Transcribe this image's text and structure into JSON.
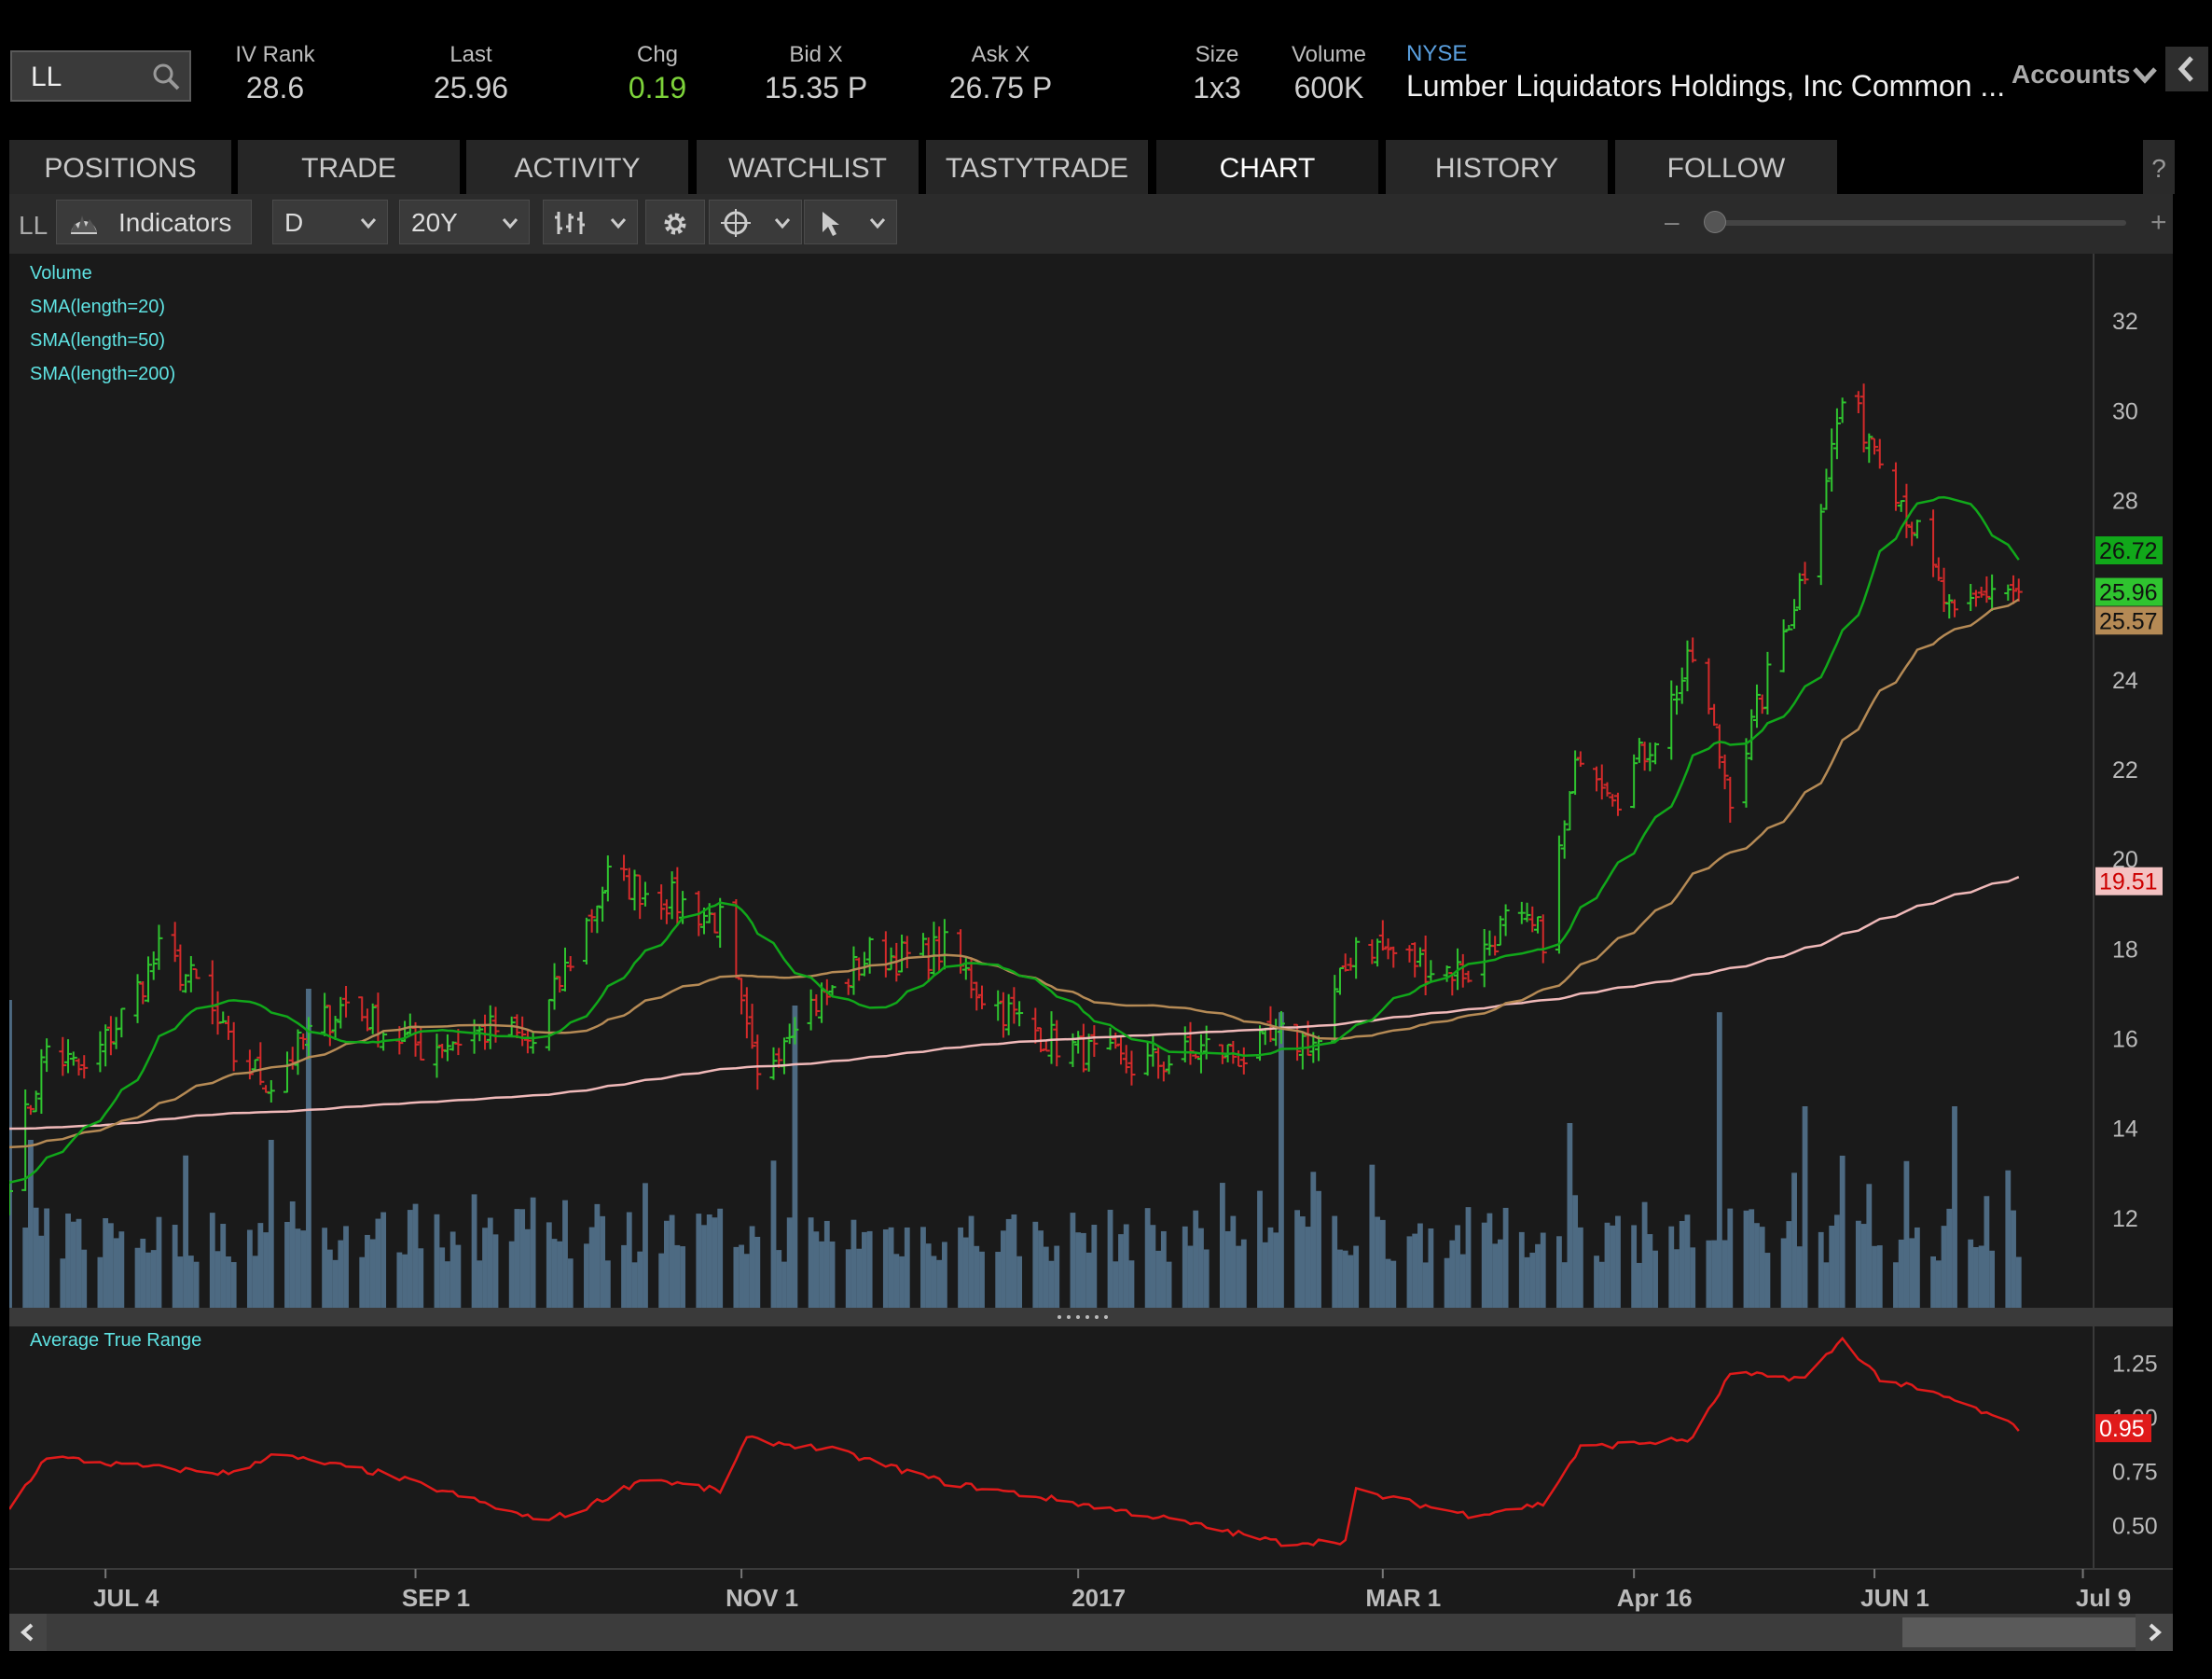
{
  "header": {
    "symbol": "LL",
    "iv_rank_label": "IV Rank",
    "iv_rank": "28.6",
    "last_label": "Last",
    "last": "25.96",
    "chg_label": "Chg",
    "chg": "0.19",
    "bid_label": "Bid X",
    "bid": "15.35 P",
    "ask_label": "Ask X",
    "ask": "26.75 P",
    "size_label": "Size",
    "size": "1x3",
    "volume_label": "Volume",
    "volume": "600K",
    "exchange": "NYSE",
    "company": "Lumber Liquidators Holdings, Inc Common ...",
    "accounts": "Accounts"
  },
  "tabs": [
    "POSITIONS",
    "TRADE",
    "ACTIVITY",
    "WATCHLIST",
    "TASTYTRADE",
    "CHART",
    "HISTORY",
    "FOLLOW"
  ],
  "active_tab": "CHART",
  "help": "?",
  "toolbar": {
    "symbol": "LL",
    "indicators_label": "Indicators",
    "aggregation": "D",
    "period": "20Y",
    "zoom_minus": "–",
    "zoom_plus": "+"
  },
  "icons": [
    "search-icon",
    "chevron-down-icon",
    "chevron-left-icon",
    "gear-icon",
    "bar-style-icon",
    "crosshair-icon",
    "cursor-icon",
    "scroll-left-icon",
    "scroll-right-icon"
  ],
  "colors": {
    "up_candle": "#2fc42f",
    "down_candle": "#d42a2a",
    "sma20": "#11a81a",
    "sma50": "#b58a55",
    "sma200": "#f0b9b9",
    "volume": "#4d6a82",
    "atr": "#e01a1a",
    "legend_text": "#5fe3e3"
  },
  "chart_data": [
    {
      "type": "candlestick",
      "legend": [
        "Volume",
        "SMA(length=20)",
        "SMA(length=50)",
        "SMA(length=200)"
      ],
      "y_ticks": [
        "12",
        "14",
        "16",
        "18",
        "20",
        "22",
        "24",
        "26",
        "28",
        "30",
        "32"
      ],
      "ylim": [
        10,
        33
      ],
      "x_ticks": [
        "JUL 4",
        "SEP 1",
        "NOV 1",
        "2017",
        "MAR 1",
        "Apr 16",
        "JUN 1",
        "Jul 9"
      ],
      "price_anchors": [
        [
          "2016-06-17",
          13.0
        ],
        [
          "2016-06-24",
          15.8
        ],
        [
          "2016-07-01",
          15.2
        ],
        [
          "2016-07-08",
          16.5
        ],
        [
          "2016-07-15",
          17.9
        ],
        [
          "2016-07-22",
          17.2
        ],
        [
          "2016-07-29",
          15.6
        ],
        [
          "2016-08-05",
          15.0
        ],
        [
          "2016-08-12",
          16.1
        ],
        [
          "2016-08-19",
          16.8
        ],
        [
          "2016-08-26",
          16.2
        ],
        [
          "2016-09-02",
          15.8
        ],
        [
          "2016-09-09",
          16.0
        ],
        [
          "2016-09-16",
          16.2
        ],
        [
          "2016-09-23",
          15.9
        ],
        [
          "2016-09-30",
          17.8
        ],
        [
          "2016-10-07",
          19.6
        ],
        [
          "2016-10-14",
          19.3
        ],
        [
          "2016-10-21",
          19.0
        ],
        [
          "2016-10-28",
          18.6
        ],
        [
          "2016-11-04",
          15.0
        ],
        [
          "2016-11-11",
          16.6
        ],
        [
          "2016-11-18",
          17.0
        ],
        [
          "2016-11-25",
          17.9
        ],
        [
          "2016-12-02",
          17.8
        ],
        [
          "2016-12-09",
          18.0
        ],
        [
          "2016-12-16",
          17.0
        ],
        [
          "2016-12-23",
          16.4
        ],
        [
          "2016-12-30",
          15.9
        ],
        [
          "2017-01-06",
          15.6
        ],
        [
          "2017-01-13",
          15.4
        ],
        [
          "2017-01-20",
          15.5
        ],
        [
          "2017-01-27",
          15.8
        ],
        [
          "2017-02-03",
          15.6
        ],
        [
          "2017-02-10",
          16.0
        ],
        [
          "2017-02-17",
          15.9
        ],
        [
          "2017-02-24",
          18.2
        ],
        [
          "2017-03-03",
          17.9
        ],
        [
          "2017-03-10",
          17.6
        ],
        [
          "2017-03-17",
          17.5
        ],
        [
          "2017-03-24",
          18.6
        ],
        [
          "2017-03-31",
          18.3
        ],
        [
          "2017-04-07",
          22.5
        ],
        [
          "2017-04-14",
          21.5
        ],
        [
          "2017-04-21",
          22.8
        ],
        [
          "2017-04-28",
          24.5
        ],
        [
          "2017-05-05",
          21.5
        ],
        [
          "2017-05-12",
          24.0
        ],
        [
          "2017-05-19",
          26.5
        ],
        [
          "2017-05-26",
          30.2
        ],
        [
          "2017-06-02",
          29.2
        ],
        [
          "2017-06-09",
          27.2
        ],
        [
          "2017-06-16",
          25.2
        ],
        [
          "2017-06-23",
          26.1
        ],
        [
          "2017-06-28",
          25.96
        ]
      ],
      "last_labels": {
        "sma20": "26.72",
        "last": "25.96",
        "sma50": "25.57",
        "sma200": "19.51"
      }
    },
    {
      "type": "line",
      "title": "Average True Range",
      "y_ticks": [
        "0.50",
        "0.75",
        "1.00",
        "1.25"
      ],
      "ylim": [
        0.3,
        1.4
      ],
      "values_anchors": [
        [
          "2016-06-17",
          0.58
        ],
        [
          "2016-06-24",
          0.82
        ],
        [
          "2016-07-08",
          0.78
        ],
        [
          "2016-07-29",
          0.74
        ],
        [
          "2016-08-05",
          0.83
        ],
        [
          "2016-08-26",
          0.74
        ],
        [
          "2016-09-09",
          0.64
        ],
        [
          "2016-09-23",
          0.53
        ],
        [
          "2016-09-30",
          0.55
        ],
        [
          "2016-10-14",
          0.72
        ],
        [
          "2016-10-28",
          0.66
        ],
        [
          "2016-11-02",
          0.9
        ],
        [
          "2016-11-18",
          0.85
        ],
        [
          "2016-12-09",
          0.7
        ],
        [
          "2016-12-30",
          0.62
        ],
        [
          "2017-01-20",
          0.53
        ],
        [
          "2017-02-10",
          0.42
        ],
        [
          "2017-02-22",
          0.43
        ],
        [
          "2017-02-24",
          0.66
        ],
        [
          "2017-03-17",
          0.55
        ],
        [
          "2017-03-31",
          0.6
        ],
        [
          "2017-04-07",
          0.86
        ],
        [
          "2017-04-28",
          0.9
        ],
        [
          "2017-05-05",
          1.2
        ],
        [
          "2017-05-19",
          1.18
        ],
        [
          "2017-05-26",
          1.36
        ],
        [
          "2017-06-02",
          1.18
        ],
        [
          "2017-06-16",
          1.08
        ],
        [
          "2017-06-28",
          0.95
        ]
      ],
      "last_label": "0.95"
    }
  ]
}
